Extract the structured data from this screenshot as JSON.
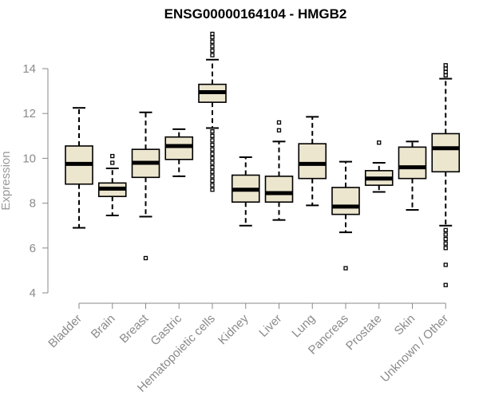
{
  "chart_data": {
    "type": "box",
    "title": "ENSG00000164104 - HMGB2",
    "xlabel": "",
    "ylabel": "Expression",
    "ylim": [
      4,
      15
    ],
    "yticks": [
      4,
      6,
      8,
      10,
      12,
      14
    ],
    "grid": false,
    "colors": {
      "box_fill": "#ede6cf",
      "stroke": "#000000",
      "axis": "#8a8a8a"
    },
    "categories": [
      "Bladder",
      "Brain",
      "Breast",
      "Gastric",
      "Hematopoietic cells",
      "Kidney",
      "Liver",
      "Lung",
      "Pancreas",
      "Prostate",
      "Skin",
      "Unknown / Other"
    ],
    "boxes": [
      {
        "category": "Bladder",
        "whisker_low": 6.9,
        "q1": 8.85,
        "median": 9.75,
        "q3": 10.55,
        "whisker_high": 12.25,
        "outliers": []
      },
      {
        "category": "Brain",
        "whisker_low": 7.45,
        "q1": 8.3,
        "median": 8.65,
        "q3": 8.9,
        "whisker_high": 9.55,
        "outliers": [
          9.8,
          10.1
        ]
      },
      {
        "category": "Breast",
        "whisker_low": 7.4,
        "q1": 9.15,
        "median": 9.8,
        "q3": 10.4,
        "whisker_high": 12.05,
        "outliers": [
          5.55
        ]
      },
      {
        "category": "Gastric",
        "whisker_low": 9.2,
        "q1": 9.95,
        "median": 10.55,
        "q3": 10.95,
        "whisker_high": 11.3,
        "outliers": []
      },
      {
        "category": "Hematopoietic cells",
        "whisker_low": 11.35,
        "q1": 12.5,
        "median": 12.95,
        "q3": 13.3,
        "whisker_high": 14.4,
        "outliers": [
          8.6,
          8.8,
          9.0,
          9.2,
          9.4,
          9.6,
          9.8,
          10.0,
          10.2,
          10.4,
          10.6,
          10.8,
          11.0,
          11.2,
          14.6,
          14.8,
          15.0,
          15.2,
          15.4,
          15.55
        ]
      },
      {
        "category": "Kidney",
        "whisker_low": 7.0,
        "q1": 8.05,
        "median": 8.6,
        "q3": 9.25,
        "whisker_high": 10.05,
        "outliers": []
      },
      {
        "category": "Liver",
        "whisker_low": 7.25,
        "q1": 8.05,
        "median": 8.45,
        "q3": 9.2,
        "whisker_high": 10.75,
        "outliers": [
          11.25,
          11.6
        ]
      },
      {
        "category": "Lung",
        "whisker_low": 7.9,
        "q1": 9.1,
        "median": 9.75,
        "q3": 10.65,
        "whisker_high": 11.85,
        "outliers": []
      },
      {
        "category": "Pancreas",
        "whisker_low": 6.7,
        "q1": 7.5,
        "median": 7.85,
        "q3": 8.7,
        "whisker_high": 9.85,
        "outliers": [
          5.1
        ]
      },
      {
        "category": "Prostate",
        "whisker_low": 8.5,
        "q1": 8.8,
        "median": 9.1,
        "q3": 9.45,
        "whisker_high": 9.8,
        "outliers": [
          10.7
        ]
      },
      {
        "category": "Skin",
        "whisker_low": 7.7,
        "q1": 9.1,
        "median": 9.6,
        "q3": 10.5,
        "whisker_high": 10.75,
        "outliers": []
      },
      {
        "category": "Unknown / Other",
        "whisker_low": 7.0,
        "q1": 9.4,
        "median": 10.45,
        "q3": 11.1,
        "whisker_high": 13.55,
        "outliers": [
          4.35,
          5.25,
          6.0,
          6.2,
          6.4,
          6.6,
          6.8,
          13.7,
          13.85,
          14.0,
          14.15
        ]
      }
    ]
  }
}
